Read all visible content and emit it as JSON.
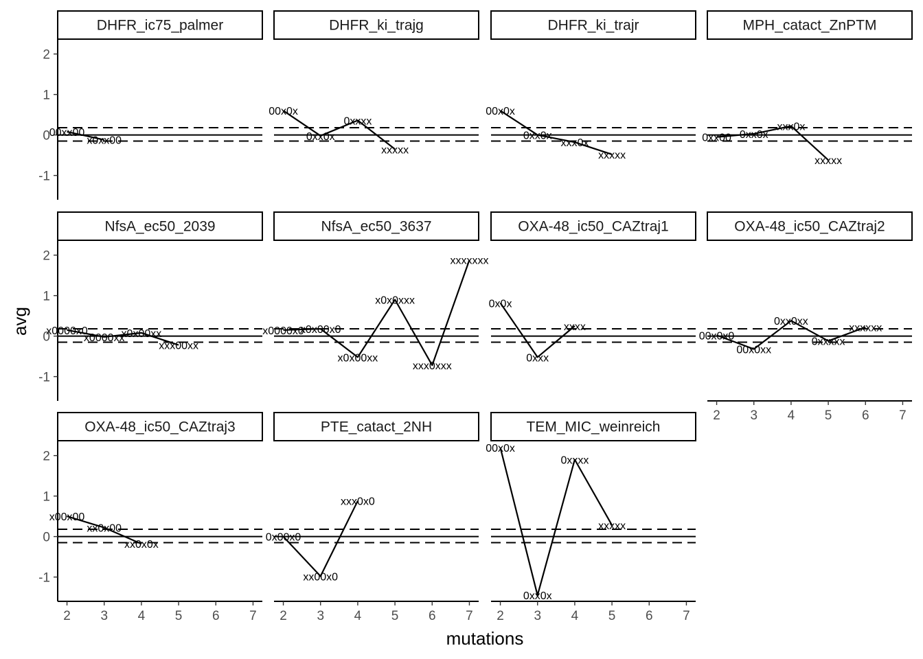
{
  "chart_data": {
    "type": "line",
    "layout": "facet-wrap",
    "xlabel": "mutations",
    "ylabel": "avg",
    "xlim": [
      1.75,
      7.25
    ],
    "ylim": [
      -1.6,
      2.35
    ],
    "x_ticks": [
      2,
      3,
      4,
      5,
      6,
      7
    ],
    "y_ticks": [
      -1,
      0,
      1,
      2
    ],
    "reference_lines": {
      "solid": 0,
      "dashed": [
        -0.15,
        0.18
      ]
    },
    "panels": [
      {
        "title": "DHFR_ic75_palmer",
        "points": [
          {
            "x": 2,
            "y": 0.08,
            "label": "00xx00"
          },
          {
            "x": 3,
            "y": -0.12,
            "label": "x0xx00"
          }
        ]
      },
      {
        "title": "DHFR_ki_trajg",
        "points": [
          {
            "x": 2,
            "y": 0.6,
            "label": "00x0x"
          },
          {
            "x": 3,
            "y": -0.02,
            "label": "0xx0x"
          },
          {
            "x": 4,
            "y": 0.36,
            "label": "0xxxx"
          },
          {
            "x": 5,
            "y": -0.35,
            "label": "xxxxx"
          }
        ]
      },
      {
        "title": "DHFR_ki_trajr",
        "points": [
          {
            "x": 2,
            "y": 0.6,
            "label": "00x0x"
          },
          {
            "x": 3,
            "y": 0.0,
            "label": "0xx0x"
          },
          {
            "x": 4,
            "y": -0.18,
            "label": "xxx0x"
          },
          {
            "x": 5,
            "y": -0.48,
            "label": "xxxxx"
          }
        ]
      },
      {
        "title": "MPH_catact_ZnPTM",
        "points": [
          {
            "x": 2,
            "y": -0.05,
            "label": "0xx00"
          },
          {
            "x": 3,
            "y": 0.03,
            "label": "0xx0x"
          },
          {
            "x": 4,
            "y": 0.22,
            "label": "xxx0x"
          },
          {
            "x": 5,
            "y": -0.62,
            "label": "xxxxx"
          }
        ]
      },
      {
        "title": "NfsA_ec50_2039",
        "points": [
          {
            "x": 2,
            "y": 0.15,
            "label": "x0000x0"
          },
          {
            "x": 3,
            "y": -0.02,
            "label": "x0000xx"
          },
          {
            "x": 4,
            "y": 0.08,
            "label": "x0x00xx"
          },
          {
            "x": 5,
            "y": -0.22,
            "label": "xxx00xx"
          }
        ]
      },
      {
        "title": "NfsA_ec50_3637",
        "points": [
          {
            "x": 2,
            "y": 0.15,
            "label": "x0000x0"
          },
          {
            "x": 3,
            "y": 0.18,
            "label": "x0x00x0"
          },
          {
            "x": 4,
            "y": -0.52,
            "label": "x0x00xx"
          },
          {
            "x": 5,
            "y": 0.9,
            "label": "x0x0xxx"
          },
          {
            "x": 6,
            "y": -0.72,
            "label": "xxx0xxx"
          },
          {
            "x": 7,
            "y": 1.88,
            "label": "xxxxxxx"
          }
        ]
      },
      {
        "title": "OXA-48_ic50_CAZtraj1",
        "points": [
          {
            "x": 2,
            "y": 0.82,
            "label": "0x0x"
          },
          {
            "x": 3,
            "y": -0.52,
            "label": "0xxx"
          },
          {
            "x": 4,
            "y": 0.25,
            "label": "xxxx"
          }
        ]
      },
      {
        "title": "OXA-48_ic50_CAZtraj2",
        "points": [
          {
            "x": 2,
            "y": 0.02,
            "label": "00x0x0"
          },
          {
            "x": 3,
            "y": -0.32,
            "label": "00x0xx"
          },
          {
            "x": 4,
            "y": 0.38,
            "label": "0xx0xx"
          },
          {
            "x": 5,
            "y": -0.12,
            "label": "0xxxxx"
          },
          {
            "x": 6,
            "y": 0.22,
            "label": "xxxxxx"
          }
        ]
      },
      {
        "title": "OXA-48_ic50_CAZtraj3",
        "points": [
          {
            "x": 2,
            "y": 0.5,
            "label": "x00x00"
          },
          {
            "x": 3,
            "y": 0.22,
            "label": "xx0x00"
          },
          {
            "x": 4,
            "y": -0.18,
            "label": "xx0x0x"
          }
        ]
      },
      {
        "title": "PTE_catact_2NH",
        "points": [
          {
            "x": 2,
            "y": 0.0,
            "label": "0x00x0"
          },
          {
            "x": 3,
            "y": -0.98,
            "label": "xx00x0"
          },
          {
            "x": 4,
            "y": 0.88,
            "label": "xxx0x0"
          }
        ]
      },
      {
        "title": "TEM_MIC_weinreich",
        "points": [
          {
            "x": 2,
            "y": 2.2,
            "label": "00x0x"
          },
          {
            "x": 3,
            "y": -1.45,
            "label": "0xx0x"
          },
          {
            "x": 4,
            "y": 1.9,
            "label": "0xxxx"
          },
          {
            "x": 5,
            "y": 0.28,
            "label": "xxxxx"
          }
        ]
      }
    ]
  }
}
